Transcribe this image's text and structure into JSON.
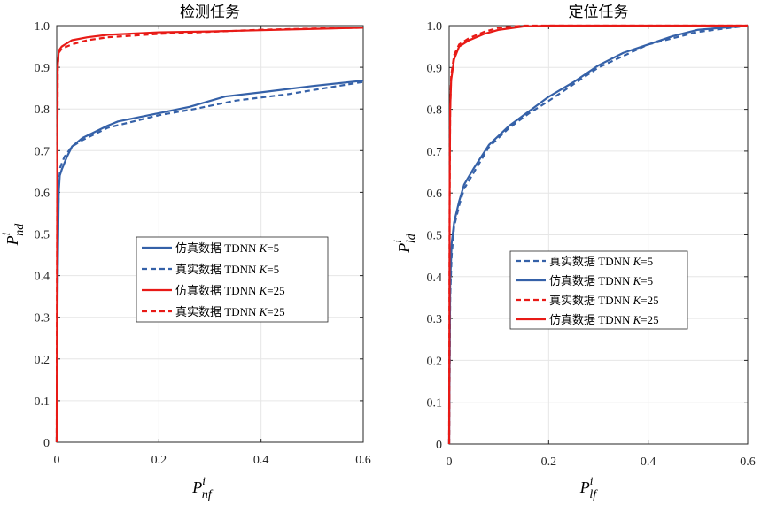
{
  "colors": {
    "blue": "#3561a8",
    "red": "#e81a16",
    "grid": "#e6e6e6",
    "axis": "#262626"
  },
  "chart_data": [
    {
      "type": "line",
      "title": "检测任务",
      "xlabel": {
        "main": "P",
        "sup": "i",
        "sub": "nf"
      },
      "ylabel": {
        "main": "P",
        "sup": "i",
        "sub": "nd"
      },
      "xlim": [
        0,
        0.6
      ],
      "ylim": [
        0,
        1.0
      ],
      "xticks": [
        "0",
        "0.2",
        "0.4",
        "0.6"
      ],
      "yticks": [
        "0",
        "0.1",
        "0.2",
        "0.3",
        "0.4",
        "0.5",
        "0.6",
        "0.7",
        "0.8",
        "0.9",
        "1.0"
      ],
      "grid": true,
      "legend_position": "center",
      "series": [
        {
          "name": "仿真数据 TDNN K=5",
          "color": "blue",
          "dash": "solid",
          "points": [
            [
              0,
              0
            ],
            [
              0.002,
              0.4
            ],
            [
              0.004,
              0.6
            ],
            [
              0.006,
              0.64
            ],
            [
              0.01,
              0.655
            ],
            [
              0.02,
              0.685
            ],
            [
              0.03,
              0.71
            ],
            [
              0.05,
              0.73
            ],
            [
              0.1,
              0.76
            ],
            [
              0.12,
              0.77
            ],
            [
              0.2,
              0.79
            ],
            [
              0.26,
              0.805
            ],
            [
              0.33,
              0.83
            ],
            [
              0.4,
              0.84
            ],
            [
              0.5,
              0.855
            ],
            [
              0.6,
              0.868
            ]
          ]
        },
        {
          "name": "真实数据 TDNN K=5",
          "color": "blue",
          "dash": "dashed",
          "points": [
            [
              0,
              0
            ],
            [
              0.002,
              0.45
            ],
            [
              0.004,
              0.62
            ],
            [
              0.007,
              0.66
            ],
            [
              0.015,
              0.685
            ],
            [
              0.03,
              0.71
            ],
            [
              0.05,
              0.725
            ],
            [
              0.1,
              0.755
            ],
            [
              0.15,
              0.77
            ],
            [
              0.2,
              0.785
            ],
            [
              0.27,
              0.8
            ],
            [
              0.35,
              0.82
            ],
            [
              0.45,
              0.835
            ],
            [
              0.55,
              0.855
            ],
            [
              0.6,
              0.865
            ]
          ]
        },
        {
          "name": "仿真数据 TDNN K=25",
          "color": "red",
          "dash": "solid",
          "points": [
            [
              0,
              0
            ],
            [
              0.001,
              0.6
            ],
            [
              0.002,
              0.9
            ],
            [
              0.004,
              0.94
            ],
            [
              0.01,
              0.95
            ],
            [
              0.03,
              0.965
            ],
            [
              0.06,
              0.972
            ],
            [
              0.1,
              0.978
            ],
            [
              0.2,
              0.984
            ],
            [
              0.3,
              0.986
            ],
            [
              0.4,
              0.989
            ],
            [
              0.5,
              0.992
            ],
            [
              0.6,
              0.995
            ]
          ]
        },
        {
          "name": "真实数据 TDNN K=25",
          "color": "red",
          "dash": "dashed",
          "points": [
            [
              0,
              0
            ],
            [
              0.001,
              0.6
            ],
            [
              0.002,
              0.9
            ],
            [
              0.004,
              0.935
            ],
            [
              0.01,
              0.945
            ],
            [
              0.03,
              0.955
            ],
            [
              0.06,
              0.965
            ],
            [
              0.1,
              0.972
            ],
            [
              0.2,
              0.98
            ],
            [
              0.3,
              0.985
            ],
            [
              0.4,
              0.99
            ],
            [
              0.5,
              0.993
            ],
            [
              0.6,
              0.995
            ]
          ]
        }
      ]
    },
    {
      "type": "line",
      "title": "定位任务",
      "xlabel": {
        "main": "P",
        "sup": "i",
        "sub": "lf"
      },
      "ylabel": {
        "main": "P",
        "sup": "i",
        "sub": "ld"
      },
      "xlim": [
        0,
        0.6
      ],
      "ylim": [
        0,
        1.0
      ],
      "xticks": [
        "0",
        "0.2",
        "0.4",
        "0.6"
      ],
      "yticks": [
        "0",
        "0.1",
        "0.2",
        "0.3",
        "0.4",
        "0.5",
        "0.6",
        "0.7",
        "0.8",
        "0.9",
        "1.0"
      ],
      "grid": true,
      "legend_position": "center",
      "series": [
        {
          "name": "真实数据 TDNN K=5",
          "color": "blue",
          "dash": "dashed",
          "points": [
            [
              0,
              0
            ],
            [
              0.002,
              0.35
            ],
            [
              0.005,
              0.45
            ],
            [
              0.01,
              0.52
            ],
            [
              0.02,
              0.57
            ],
            [
              0.03,
              0.61
            ],
            [
              0.05,
              0.65
            ],
            [
              0.08,
              0.71
            ],
            [
              0.12,
              0.755
            ],
            [
              0.16,
              0.79
            ],
            [
              0.2,
              0.82
            ],
            [
              0.25,
              0.86
            ],
            [
              0.3,
              0.9
            ],
            [
              0.4,
              0.955
            ],
            [
              0.5,
              0.985
            ],
            [
              0.6,
              1.0
            ]
          ]
        },
        {
          "name": "仿真数据 TDNN K=5",
          "color": "blue",
          "dash": "solid",
          "points": [
            [
              0,
              0
            ],
            [
              0.002,
              0.38
            ],
            [
              0.005,
              0.48
            ],
            [
              0.01,
              0.53
            ],
            [
              0.02,
              0.58
            ],
            [
              0.03,
              0.62
            ],
            [
              0.05,
              0.66
            ],
            [
              0.08,
              0.715
            ],
            [
              0.12,
              0.76
            ],
            [
              0.16,
              0.795
            ],
            [
              0.2,
              0.83
            ],
            [
              0.25,
              0.865
            ],
            [
              0.3,
              0.905
            ],
            [
              0.35,
              0.935
            ],
            [
              0.4,
              0.955
            ],
            [
              0.45,
              0.975
            ],
            [
              0.5,
              0.99
            ],
            [
              0.6,
              1.0
            ]
          ]
        },
        {
          "name": "真实数据 TDNN K=25",
          "color": "red",
          "dash": "dashed",
          "points": [
            [
              0,
              0
            ],
            [
              0.001,
              0.6
            ],
            [
              0.002,
              0.8
            ],
            [
              0.004,
              0.88
            ],
            [
              0.01,
              0.93
            ],
            [
              0.02,
              0.955
            ],
            [
              0.04,
              0.97
            ],
            [
              0.07,
              0.985
            ],
            [
              0.1,
              0.995
            ],
            [
              0.15,
              1.0
            ],
            [
              0.6,
              1.0
            ]
          ]
        },
        {
          "name": "仿真数据 TDNN K=25",
          "color": "red",
          "dash": "solid",
          "points": [
            [
              0,
              0
            ],
            [
              0.001,
              0.6
            ],
            [
              0.002,
              0.8
            ],
            [
              0.004,
              0.87
            ],
            [
              0.01,
              0.92
            ],
            [
              0.02,
              0.95
            ],
            [
              0.04,
              0.965
            ],
            [
              0.07,
              0.98
            ],
            [
              0.1,
              0.99
            ],
            [
              0.15,
              0.998
            ],
            [
              0.2,
              1.0
            ],
            [
              0.6,
              1.0
            ]
          ]
        }
      ]
    }
  ]
}
